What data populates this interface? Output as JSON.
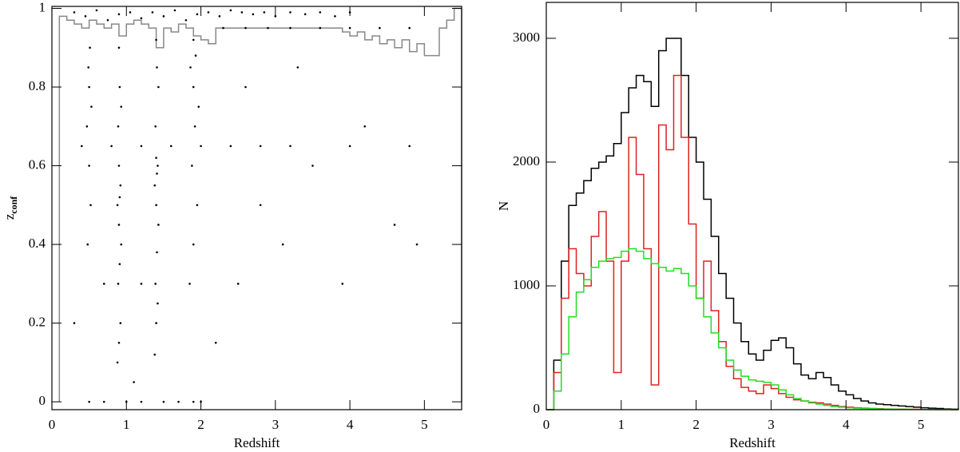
{
  "chart_data": [
    {
      "type": "scatter",
      "xlabel": "Redshift",
      "ylabel": "z",
      "ylabel_sub": "conf",
      "color": "#000000",
      "x": [
        0.3,
        0.45,
        0.6,
        0.75,
        0.9,
        1.05,
        1.2,
        1.35,
        1.5,
        1.65,
        1.8,
        1.95,
        2.1,
        2.25,
        2.4,
        2.55,
        2.7,
        2.85,
        3.0,
        3.2,
        3.4,
        3.6,
        3.8,
        4.0,
        2.3,
        2.6,
        2.9,
        3.2,
        3.6,
        4.0,
        4.4,
        4.8,
        0.4,
        0.8,
        1.2,
        1.6,
        2.0,
        2.4,
        2.8,
        3.2,
        4.0,
        4.8,
        0.88,
        0.9,
        0.92,
        0.89,
        0.91,
        0.93,
        0.9,
        0.88,
        0.91,
        0.92,
        0.9,
        0.89,
        0.93,
        0.91,
        0.9,
        1.38,
        1.4,
        1.42,
        1.39,
        1.41,
        1.43,
        1.4,
        1.38,
        1.41,
        1.42,
        1.4,
        1.39,
        1.43,
        1.41,
        1.4,
        1.85,
        1.9,
        1.95,
        1.88,
        1.92,
        1.97,
        1.9,
        1.86,
        1.93,
        1.9,
        0.48,
        0.52,
        0.5,
        0.47,
        0.53,
        0.5,
        0.49,
        0.51,
        0.3,
        2.5,
        2.8,
        3.1,
        3.5,
        3.9,
        4.2,
        4.6,
        4.9,
        2.2,
        1.1,
        1.2,
        0.7,
        2.6,
        3.3,
        0.5,
        0.7,
        1.0,
        1.2,
        1.5,
        1.7,
        1.9,
        2.0
      ],
      "y": [
        0.99,
        0.98,
        0.995,
        0.97,
        0.985,
        0.99,
        0.975,
        0.99,
        0.98,
        0.995,
        0.97,
        0.985,
        0.99,
        0.98,
        0.995,
        0.99,
        0.985,
        0.99,
        0.98,
        0.99,
        0.985,
        0.99,
        0.98,
        0.99,
        0.95,
        0.95,
        0.95,
        0.95,
        0.95,
        0.95,
        0.95,
        0.95,
        0.65,
        0.65,
        0.65,
        0.65,
        0.65,
        0.65,
        0.65,
        0.65,
        0.65,
        0.65,
        0.1,
        0.15,
        0.2,
        0.3,
        0.35,
        0.4,
        0.45,
        0.5,
        0.52,
        0.55,
        0.6,
        0.7,
        0.75,
        0.8,
        0.9,
        0.12,
        0.2,
        0.25,
        0.3,
        0.38,
        0.45,
        0.5,
        0.55,
        0.58,
        0.6,
        0.62,
        0.7,
        0.8,
        0.85,
        0.92,
        0.3,
        0.4,
        0.5,
        0.6,
        0.7,
        0.75,
        0.8,
        0.85,
        0.88,
        0.92,
        0.4,
        0.5,
        0.6,
        0.7,
        0.75,
        0.8,
        0.85,
        0.9,
        0.2,
        0.3,
        0.5,
        0.4,
        0.6,
        0.3,
        0.7,
        0.45,
        0.4,
        0.15,
        0.05,
        0.3,
        0.3,
        0.8,
        0.85,
        0,
        0,
        0,
        0,
        0,
        0,
        0,
        0
      ],
      "step": {
        "color": "#888888",
        "bins": [
          0.1,
          0.2,
          0.3,
          0.4,
          0.5,
          0.6,
          0.7,
          0.8,
          0.9,
          1.0,
          1.1,
          1.2,
          1.3,
          1.4,
          1.5,
          1.6,
          1.7,
          1.8,
          1.9,
          2.0,
          2.1,
          2.2,
          2.3,
          2.4,
          2.5,
          2.6,
          2.7,
          2.8,
          2.9,
          3.0,
          3.1,
          3.2,
          3.3,
          3.4,
          3.5,
          3.6,
          3.7,
          3.8,
          3.9,
          4.0,
          4.1,
          4.2,
          4.3,
          4.4,
          4.5,
          4.6,
          4.7,
          4.8,
          4.9,
          5.0,
          5.1,
          5.2,
          5.3,
          5.4,
          5.5
        ],
        "values": [
          0.98,
          0.97,
          0.96,
          0.95,
          0.97,
          0.96,
          0.95,
          0.96,
          0.93,
          0.96,
          0.97,
          0.96,
          0.95,
          0.9,
          0.95,
          0.94,
          0.96,
          0.95,
          0.93,
          0.92,
          0.91,
          0.95,
          0.95,
          0.95,
          0.95,
          0.95,
          0.95,
          0.95,
          0.95,
          0.95,
          0.95,
          0.95,
          0.95,
          0.95,
          0.95,
          0.95,
          0.95,
          0.95,
          0.94,
          0.93,
          0.94,
          0.92,
          0.93,
          0.91,
          0.92,
          0.9,
          0.92,
          0.89,
          0.91,
          0.88,
          0.88,
          0.95,
          0.97,
          1.0
        ]
      },
      "xlim": [
        0,
        5.5
      ],
      "ylim": [
        -0.02,
        1.005
      ],
      "xticks": [
        0,
        1,
        2,
        3,
        4,
        5
      ],
      "yticks": [
        0,
        0.2,
        0.4,
        0.6,
        0.8,
        1
      ]
    },
    {
      "type": "histogram",
      "xlabel": "Redshift",
      "ylabel": "N",
      "bins": [
        0,
        0.1,
        0.2,
        0.3,
        0.4,
        0.5,
        0.6,
        0.7,
        0.8,
        0.9,
        1.0,
        1.1,
        1.2,
        1.3,
        1.4,
        1.5,
        1.6,
        1.7,
        1.8,
        1.9,
        2.0,
        2.1,
        2.2,
        2.3,
        2.4,
        2.5,
        2.6,
        2.7,
        2.8,
        2.9,
        3.0,
        3.1,
        3.2,
        3.3,
        3.4,
        3.5,
        3.6,
        3.7,
        3.8,
        3.9,
        4.0,
        4.1,
        4.2,
        4.3,
        4.4,
        4.5,
        4.6,
        4.7,
        4.8,
        4.9,
        5.0,
        5.1,
        5.2,
        5.3,
        5.4,
        5.5
      ],
      "series": [
        {
          "color": "#000000",
          "values": [
            0,
            400,
            1200,
            1650,
            1750,
            1850,
            1950,
            2000,
            2050,
            2150,
            2400,
            2600,
            2700,
            2650,
            2450,
            2900,
            3000,
            3000,
            2700,
            2200,
            2000,
            1700,
            1400,
            1100,
            900,
            700,
            550,
            450,
            400,
            480,
            560,
            580,
            500,
            370,
            280,
            250,
            300,
            260,
            200,
            150,
            120,
            90,
            70,
            55,
            45,
            40,
            35,
            30,
            25,
            20,
            15,
            12,
            10,
            6,
            4
          ]
        },
        {
          "color": "#e02020",
          "values": [
            0,
            300,
            900,
            1300,
            1100,
            1000,
            1400,
            1600,
            1200,
            300,
            1200,
            2200,
            1900,
            1300,
            200,
            2300,
            2100,
            2700,
            2200,
            1500,
            900,
            1200,
            800,
            550,
            350,
            250,
            180,
            150,
            130,
            200,
            170,
            130,
            100,
            80,
            70,
            60,
            55,
            45,
            35,
            25,
            20,
            15,
            12,
            10,
            8,
            6,
            5,
            4,
            3,
            3,
            2,
            2,
            1,
            1,
            0
          ]
        },
        {
          "color": "#22dd22",
          "values": [
            0,
            150,
            450,
            750,
            950,
            1050,
            1150,
            1200,
            1220,
            1230,
            1280,
            1300,
            1280,
            1220,
            1180,
            1150,
            1120,
            1140,
            1100,
            1000,
            900,
            750,
            620,
            500,
            400,
            320,
            270,
            240,
            230,
            220,
            200,
            160,
            120,
            90,
            70,
            55,
            45,
            35,
            25,
            20,
            15,
            12,
            10,
            8,
            6,
            5,
            4,
            3,
            3,
            2,
            2,
            1,
            1,
            1,
            0
          ]
        }
      ],
      "xlim": [
        0,
        5.5
      ],
      "ylim": [
        0,
        3290
      ],
      "xticks": [
        0,
        1,
        2,
        3,
        4,
        5
      ],
      "yticks": [
        0,
        1000,
        2000,
        3000
      ]
    }
  ]
}
